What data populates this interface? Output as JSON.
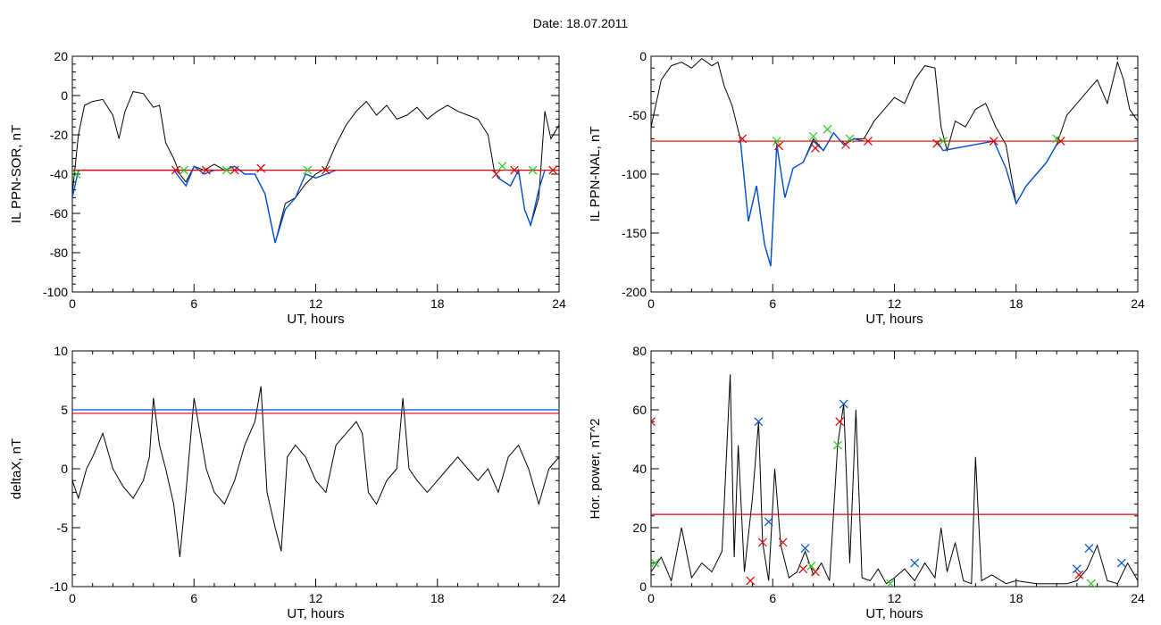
{
  "title": "Date:  18.07.2011",
  "colors": {
    "black": "#000000",
    "red": "#e00000",
    "blue": "#0050d0",
    "green": "#22cc22"
  },
  "chart_data": [
    {
      "id": "p1",
      "type": "line",
      "ylabel": "IL PPN-SOR, nT",
      "xlabel": "UT, hours",
      "xlim": [
        0,
        24
      ],
      "ylim": [
        -100,
        20
      ],
      "xticks": [
        0,
        6,
        12,
        18,
        24
      ],
      "yticks": [
        -100,
        -80,
        -60,
        -40,
        -20,
        0,
        20
      ],
      "threshold": [
        {
          "value": -38,
          "color": "#e00000"
        }
      ],
      "series": [
        {
          "color": "#000000",
          "x": [
            0,
            0.3,
            0.6,
            1,
            1.5,
            2,
            2.3,
            2.6,
            3,
            3.5,
            4,
            4.3,
            4.6,
            5,
            5.3,
            5.6,
            6,
            6.5,
            7,
            7.5,
            8,
            8.5,
            9,
            9.5,
            10,
            10.5,
            11,
            11.5,
            12,
            12.5,
            13,
            13.5,
            14,
            14.5,
            15,
            15.5,
            16,
            16.5,
            17,
            17.5,
            18,
            18.5,
            19,
            19.5,
            20,
            20.5,
            20.8,
            21,
            21.3,
            21.6,
            22,
            22.3,
            22.6,
            23,
            23.3,
            23.6,
            24
          ],
          "y": [
            -50,
            -20,
            -5,
            -3,
            -2,
            -10,
            -22,
            -8,
            2,
            1,
            -6,
            -5,
            -24,
            -32,
            -40,
            -44,
            -36,
            -38,
            -35,
            -38,
            -36,
            -40,
            -40,
            -50,
            -75,
            -55,
            -52,
            -45,
            -40,
            -37,
            -25,
            -15,
            -8,
            -3,
            -10,
            -5,
            -12,
            -10,
            -6,
            -12,
            -8,
            -5,
            -8,
            -10,
            -12,
            -20,
            -38,
            -42,
            -44,
            -46,
            -38,
            -58,
            -66,
            -52,
            -8,
            -22,
            -15
          ]
        },
        {
          "color": "#0050d0",
          "x": [
            0,
            0.3,
            5,
            5.3,
            5.6,
            6,
            6.5,
            7,
            7.5,
            8,
            8.5,
            9,
            9.5,
            10,
            10.5,
            11,
            11.5,
            12,
            12.5,
            13
          ],
          "y": [
            -52,
            -38,
            -38,
            -42,
            -46,
            -36,
            -40,
            -38,
            -38,
            -36,
            -40,
            -40,
            -50,
            -75,
            -58,
            -52,
            -40,
            -42,
            -40,
            -38
          ]
        },
        {
          "color": "#0050d0",
          "x": [
            20.8,
            21,
            21.3,
            21.6,
            22,
            22.3,
            22.6,
            23,
            23.3
          ],
          "y": [
            -38,
            -42,
            -44,
            -46,
            -38,
            -58,
            -66,
            -48,
            -38
          ]
        }
      ],
      "markers": [
        {
          "x": 0.2,
          "y": -40,
          "color": "#22cc22"
        },
        {
          "x": 5.1,
          "y": -38,
          "color": "#e00000"
        },
        {
          "x": 5.5,
          "y": -38,
          "color": "#22cc22"
        },
        {
          "x": 6.6,
          "y": -38,
          "color": "#e00000"
        },
        {
          "x": 7.6,
          "y": -38,
          "color": "#22cc22"
        },
        {
          "x": 8,
          "y": -38,
          "color": "#e00000"
        },
        {
          "x": 9.3,
          "y": -37,
          "color": "#e00000"
        },
        {
          "x": 11.6,
          "y": -38,
          "color": "#22cc22"
        },
        {
          "x": 12.5,
          "y": -38,
          "color": "#e00000"
        },
        {
          "x": 20.9,
          "y": -40,
          "color": "#e00000"
        },
        {
          "x": 21.2,
          "y": -36,
          "color": "#22cc22"
        },
        {
          "x": 21.8,
          "y": -38,
          "color": "#e00000"
        },
        {
          "x": 22.7,
          "y": -38,
          "color": "#22cc22"
        },
        {
          "x": 23.7,
          "y": -38,
          "color": "#e00000"
        }
      ]
    },
    {
      "id": "p2",
      "type": "line",
      "ylabel": "IL PPN-NAL, nT",
      "xlabel": "UT, hours",
      "xlim": [
        0,
        24
      ],
      "ylim": [
        -200,
        0
      ],
      "xticks": [
        0,
        6,
        12,
        18,
        24
      ],
      "yticks": [
        -200,
        -150,
        -100,
        -50,
        0
      ],
      "threshold": [
        {
          "value": -72,
          "color": "#e00000"
        }
      ],
      "series": [
        {
          "color": "#000000",
          "x": [
            0,
            0.5,
            1,
            1.5,
            2,
            2.5,
            3,
            3.3,
            3.6,
            4,
            4.4,
            4.8,
            5.2,
            5.6,
            5.9,
            6.2,
            6.6,
            7,
            7.5,
            8,
            8.5,
            9,
            9.5,
            10,
            10.5,
            11,
            11.5,
            12,
            12.5,
            13,
            13.5,
            14,
            14.3,
            14.6,
            15,
            15.5,
            16,
            16.5,
            17,
            17.5,
            18,
            18.5,
            19,
            19.5,
            20,
            20.5,
            21,
            21.5,
            22,
            22.5,
            23,
            23.3,
            23.6,
            24
          ],
          "y": [
            -60,
            -20,
            -8,
            -5,
            -10,
            -2,
            -8,
            -5,
            -25,
            -42,
            -70,
            -140,
            -110,
            -160,
            -178,
            -75,
            -120,
            -95,
            -90,
            -70,
            -80,
            -65,
            -75,
            -70,
            -70,
            -55,
            -45,
            -35,
            -40,
            -20,
            -8,
            -10,
            -60,
            -80,
            -55,
            -60,
            -45,
            -40,
            -60,
            -75,
            -125,
            -110,
            -100,
            -90,
            -75,
            -50,
            -40,
            -30,
            -20,
            -40,
            -5,
            -20,
            -45,
            -55
          ]
        },
        {
          "color": "#0050d0",
          "x": [
            4.4,
            4.8,
            5.2,
            5.6,
            5.9,
            6.2,
            6.6,
            7,
            7.5,
            8,
            8.5,
            9,
            9.5,
            10,
            10.5
          ],
          "y": [
            -70,
            -140,
            -110,
            -160,
            -178,
            -75,
            -120,
            -95,
            -90,
            -72,
            -80,
            -65,
            -75,
            -70,
            -72
          ]
        },
        {
          "color": "#0050d0",
          "x": [
            14.1,
            14.4,
            16.9,
            17.5,
            18,
            18.5,
            19,
            19.5,
            20.1
          ],
          "y": [
            -72,
            -80,
            -72,
            -95,
            -125,
            -110,
            -100,
            -90,
            -72
          ]
        }
      ],
      "markers": [
        {
          "x": 4.5,
          "y": -70,
          "color": "#e00000"
        },
        {
          "x": 6.2,
          "y": -72,
          "color": "#22cc22"
        },
        {
          "x": 6.3,
          "y": -76,
          "color": "#e00000"
        },
        {
          "x": 8,
          "y": -68,
          "color": "#22cc22"
        },
        {
          "x": 8.1,
          "y": -78,
          "color": "#e00000"
        },
        {
          "x": 8.7,
          "y": -62,
          "color": "#22cc22"
        },
        {
          "x": 9.6,
          "y": -75,
          "color": "#e00000"
        },
        {
          "x": 9.8,
          "y": -70,
          "color": "#22cc22"
        },
        {
          "x": 10.7,
          "y": -72,
          "color": "#e00000"
        },
        {
          "x": 14.1,
          "y": -74,
          "color": "#e00000"
        },
        {
          "x": 14.4,
          "y": -72,
          "color": "#22cc22"
        },
        {
          "x": 16.9,
          "y": -72,
          "color": "#e00000"
        },
        {
          "x": 20,
          "y": -70,
          "color": "#22cc22"
        },
        {
          "x": 20.2,
          "y": -72,
          "color": "#e00000"
        }
      ]
    },
    {
      "id": "p3",
      "type": "line",
      "ylabel": "deltaX, nT",
      "xlabel": "UT, hours",
      "xlim": [
        0,
        24
      ],
      "ylim": [
        -10,
        10
      ],
      "xticks": [
        0,
        6,
        12,
        18,
        24
      ],
      "yticks": [
        -10,
        -5,
        0,
        5,
        10
      ],
      "threshold": [
        {
          "value": 5.0,
          "color": "#0050d0"
        },
        {
          "value": 4.7,
          "color": "#e00000"
        }
      ],
      "series": [
        {
          "color": "#000000",
          "x": [
            0,
            0.3,
            0.7,
            1,
            1.5,
            2,
            2.5,
            3,
            3.5,
            3.8,
            4,
            4.3,
            4.6,
            5,
            5.3,
            5.6,
            6,
            6.3,
            6.6,
            7,
            7.5,
            8,
            8.5,
            9,
            9.3,
            9.6,
            10,
            10.3,
            10.6,
            11,
            11.5,
            12,
            12.5,
            13,
            13.5,
            14,
            14.3,
            14.6,
            15,
            15.5,
            16,
            16.3,
            16.6,
            17,
            17.5,
            18,
            18.5,
            19,
            19.5,
            20,
            20.5,
            21,
            21.5,
            22,
            22.5,
            23,
            23.5,
            24
          ],
          "y": [
            -1,
            -2.5,
            0,
            1,
            3,
            0,
            -1.5,
            -2.5,
            -1,
            1,
            6,
            2,
            0,
            -3,
            -7.5,
            -2,
            6,
            3,
            0,
            -2,
            -3,
            -1,
            2,
            4,
            7,
            -2,
            -5,
            -7,
            1,
            2,
            1,
            -1,
            -2,
            2,
            3,
            4,
            3,
            -2,
            -3,
            -1,
            0,
            6,
            0,
            -1,
            -2,
            -1,
            0,
            1,
            0,
            -1,
            0,
            -2,
            1,
            2,
            0,
            -3,
            0,
            1
          ]
        }
      ],
      "markers": []
    },
    {
      "id": "p4",
      "type": "line",
      "ylabel": "Hor. power, nT^2",
      "xlabel": "UT, hours",
      "xlim": [
        0,
        24
      ],
      "ylim": [
        0,
        80
      ],
      "xticks": [
        0,
        6,
        12,
        18,
        24
      ],
      "yticks": [
        0,
        20,
        40,
        60,
        80
      ],
      "threshold": [
        {
          "value": 24.5,
          "color": "#e00000"
        }
      ],
      "series": [
        {
          "color": "#000000",
          "x": [
            0,
            0.5,
            1,
            1.5,
            2,
            2.5,
            3,
            3.5,
            3.9,
            4.1,
            4.3,
            4.6,
            5,
            5.3,
            5.5,
            5.8,
            6.1,
            6.4,
            6.8,
            7.2,
            7.6,
            8,
            8.4,
            8.8,
            9.2,
            9.5,
            9.8,
            10.1,
            10.4,
            10.8,
            11.2,
            11.6,
            12,
            12.5,
            13,
            13.5,
            14,
            14.3,
            14.6,
            15,
            15.4,
            15.8,
            16,
            16.3,
            16.8,
            17.5,
            18,
            19,
            20,
            20.5,
            21,
            21.5,
            22,
            22.5,
            23,
            23.5,
            24
          ],
          "y": [
            5,
            10,
            2,
            20,
            3,
            8,
            5,
            12,
            72,
            10,
            48,
            5,
            30,
            56,
            15,
            2,
            40,
            14,
            3,
            5,
            12,
            4,
            8,
            2,
            48,
            62,
            8,
            60,
            3,
            2,
            6,
            1,
            3,
            6,
            2,
            8,
            3,
            20,
            5,
            15,
            2,
            1,
            44,
            2,
            4,
            1,
            2,
            1,
            1,
            1,
            2,
            6,
            14,
            2,
            1,
            8,
            2
          ]
        }
      ],
      "markers": [
        {
          "x": 0,
          "y": 56,
          "color": "#e00000"
        },
        {
          "x": 0.2,
          "y": 8,
          "color": "#22cc22"
        },
        {
          "x": 4.9,
          "y": 2,
          "color": "#e00000"
        },
        {
          "x": 5.3,
          "y": 56,
          "color": "#0050d0"
        },
        {
          "x": 5.5,
          "y": 15,
          "color": "#e00000"
        },
        {
          "x": 5.8,
          "y": 22,
          "color": "#0050d0"
        },
        {
          "x": 6.5,
          "y": 15,
          "color": "#e00000"
        },
        {
          "x": 7.6,
          "y": 13,
          "color": "#0050d0"
        },
        {
          "x": 7.5,
          "y": 6,
          "color": "#e00000"
        },
        {
          "x": 7.9,
          "y": 7,
          "color": "#22cc22"
        },
        {
          "x": 8.1,
          "y": 5,
          "color": "#e00000"
        },
        {
          "x": 9.2,
          "y": 48,
          "color": "#22cc22"
        },
        {
          "x": 9.3,
          "y": 56,
          "color": "#e00000"
        },
        {
          "x": 9.5,
          "y": 62,
          "color": "#0050d0"
        },
        {
          "x": 11.8,
          "y": 1,
          "color": "#22cc22"
        },
        {
          "x": 13,
          "y": 8,
          "color": "#0050d0"
        },
        {
          "x": 21,
          "y": 6,
          "color": "#0050d0"
        },
        {
          "x": 21.1,
          "y": 4,
          "color": "#e00000"
        },
        {
          "x": 21.6,
          "y": 13,
          "color": "#0050d0"
        },
        {
          "x": 21.7,
          "y": 1,
          "color": "#22cc22"
        },
        {
          "x": 23.2,
          "y": 8,
          "color": "#0050d0"
        }
      ]
    }
  ]
}
